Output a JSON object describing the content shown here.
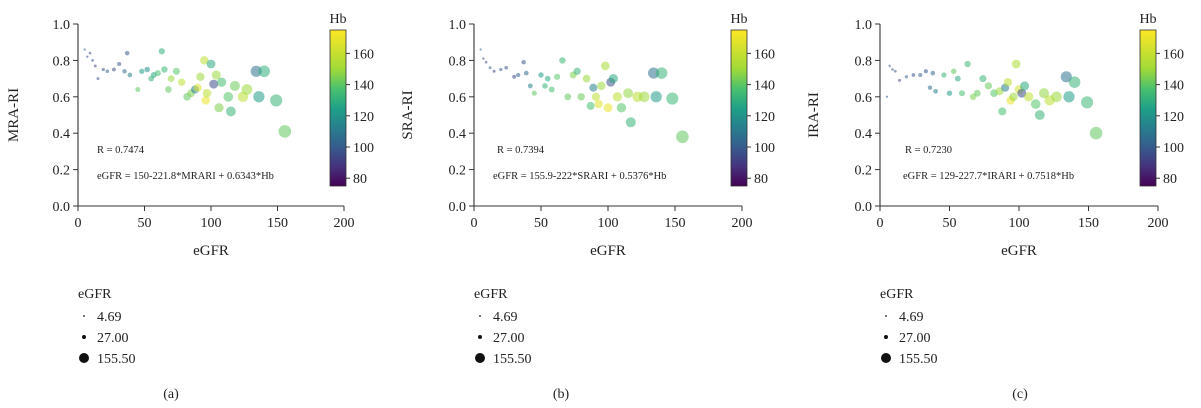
{
  "panels": [
    {
      "panel_label": "(a)",
      "r_text": "R = 0.7474",
      "equation": "eGFR = 150-221.8*MRARI + 0.6343*Hb"
    },
    {
      "panel_label": "(b)",
      "r_text": "R = 0.7394",
      "equation": "eGFR = 155.9-222*SRARI + 0.5376*Hb"
    },
    {
      "panel_label": "(c)",
      "r_text": "R = 0.7230",
      "equation": "eGFR = 129-227.7*IRARI + 0.7518*Hb"
    }
  ],
  "colorbar": {
    "title": "Hb",
    "min": 75,
    "max": 175,
    "ticks": [
      "80",
      "100",
      "120",
      "140",
      "160"
    ]
  },
  "size_legend": {
    "title": "eGFR",
    "items": [
      "4.69",
      "27.00",
      "155.50"
    ]
  },
  "chart_data": [
    {
      "type": "scatter",
      "title": "",
      "xlabel": "eGFR",
      "ylabel": "MRA-RI",
      "xlim": [
        0,
        200
      ],
      "ylim": [
        0,
        1.0
      ],
      "x_ticks": [
        "0",
        "50",
        "100",
        "150",
        "200"
      ],
      "y_ticks": [
        "0.0",
        "0.2",
        "0.4",
        "0.6",
        "0.8",
        "1.0"
      ],
      "size_by": "eGFR",
      "color_by": "Hb",
      "points": [
        {
          "x": 5,
          "y": 0.86,
          "hb": 105
        },
        {
          "x": 7,
          "y": 0.82,
          "hb": 100
        },
        {
          "x": 9,
          "y": 0.84,
          "hb": 98
        },
        {
          "x": 11,
          "y": 0.8,
          "hb": 102
        },
        {
          "x": 13,
          "y": 0.77,
          "hb": 96
        },
        {
          "x": 15,
          "y": 0.7,
          "hb": 104
        },
        {
          "x": 19,
          "y": 0.75,
          "hb": 100
        },
        {
          "x": 22,
          "y": 0.74,
          "hb": 106
        },
        {
          "x": 27,
          "y": 0.75,
          "hb": 98
        },
        {
          "x": 31,
          "y": 0.78,
          "hb": 102
        },
        {
          "x": 35,
          "y": 0.74,
          "hb": 108
        },
        {
          "x": 37,
          "y": 0.84,
          "hb": 104
        },
        {
          "x": 39,
          "y": 0.72,
          "hb": 118
        },
        {
          "x": 45,
          "y": 0.64,
          "hb": 150
        },
        {
          "x": 48,
          "y": 0.74,
          "hb": 130
        },
        {
          "x": 52,
          "y": 0.75,
          "hb": 125
        },
        {
          "x": 55,
          "y": 0.7,
          "hb": 140
        },
        {
          "x": 57,
          "y": 0.72,
          "hb": 135
        },
        {
          "x": 60,
          "y": 0.73,
          "hb": 145
        },
        {
          "x": 63,
          "y": 0.85,
          "hb": 138
        },
        {
          "x": 65,
          "y": 0.75,
          "hb": 142
        },
        {
          "x": 68,
          "y": 0.64,
          "hb": 150
        },
        {
          "x": 70,
          "y": 0.7,
          "hb": 160
        },
        {
          "x": 74,
          "y": 0.74,
          "hb": 148
        },
        {
          "x": 78,
          "y": 0.68,
          "hb": 165
        },
        {
          "x": 82,
          "y": 0.6,
          "hb": 150
        },
        {
          "x": 85,
          "y": 0.62,
          "hb": 155
        },
        {
          "x": 88,
          "y": 0.64,
          "hb": 118
        },
        {
          "x": 90,
          "y": 0.65,
          "hb": 170
        },
        {
          "x": 92,
          "y": 0.71,
          "hb": 160
        },
        {
          "x": 95,
          "y": 0.8,
          "hb": 165
        },
        {
          "x": 96,
          "y": 0.58,
          "hb": 172
        },
        {
          "x": 97,
          "y": 0.62,
          "hb": 165
        },
        {
          "x": 100,
          "y": 0.78,
          "hb": 135
        },
        {
          "x": 102,
          "y": 0.67,
          "hb": 98
        },
        {
          "x": 104,
          "y": 0.72,
          "hb": 160
        },
        {
          "x": 106,
          "y": 0.54,
          "hb": 155
        },
        {
          "x": 108,
          "y": 0.68,
          "hb": 145
        },
        {
          "x": 113,
          "y": 0.6,
          "hb": 148
        },
        {
          "x": 115,
          "y": 0.52,
          "hb": 140
        },
        {
          "x": 118,
          "y": 0.66,
          "hb": 152
        },
        {
          "x": 124,
          "y": 0.6,
          "hb": 165
        },
        {
          "x": 127,
          "y": 0.64,
          "hb": 160
        },
        {
          "x": 134,
          "y": 0.74,
          "hb": 112
        },
        {
          "x": 136,
          "y": 0.6,
          "hb": 130
        },
        {
          "x": 140,
          "y": 0.74,
          "hb": 138
        },
        {
          "x": 149,
          "y": 0.58,
          "hb": 140
        },
        {
          "x": 155.5,
          "y": 0.41,
          "hb": 150
        }
      ]
    },
    {
      "type": "scatter",
      "title": "",
      "xlabel": "eGFR",
      "ylabel": "SRA-RI",
      "xlim": [
        0,
        200
      ],
      "ylim": [
        0,
        1.0
      ],
      "x_ticks": [
        "0",
        "50",
        "100",
        "150",
        "200"
      ],
      "y_ticks": [
        "0.0",
        "0.2",
        "0.4",
        "0.6",
        "0.8",
        "1.0"
      ],
      "size_by": "eGFR",
      "color_by": "Hb",
      "points": [
        {
          "x": 5,
          "y": 0.86,
          "hb": 105
        },
        {
          "x": 7,
          "y": 0.81,
          "hb": 100
        },
        {
          "x": 9,
          "y": 0.79,
          "hb": 98
        },
        {
          "x": 12,
          "y": 0.76,
          "hb": 102
        },
        {
          "x": 15,
          "y": 0.74,
          "hb": 96
        },
        {
          "x": 20,
          "y": 0.75,
          "hb": 104
        },
        {
          "x": 24,
          "y": 0.76,
          "hb": 100
        },
        {
          "x": 30,
          "y": 0.71,
          "hb": 98
        },
        {
          "x": 33,
          "y": 0.72,
          "hb": 106
        },
        {
          "x": 37,
          "y": 0.79,
          "hb": 102
        },
        {
          "x": 39,
          "y": 0.73,
          "hb": 110
        },
        {
          "x": 42,
          "y": 0.66,
          "hb": 118
        },
        {
          "x": 45,
          "y": 0.62,
          "hb": 150
        },
        {
          "x": 50,
          "y": 0.72,
          "hb": 130
        },
        {
          "x": 53,
          "y": 0.66,
          "hb": 140
        },
        {
          "x": 55,
          "y": 0.7,
          "hb": 135
        },
        {
          "x": 58,
          "y": 0.64,
          "hb": 145
        },
        {
          "x": 62,
          "y": 0.71,
          "hb": 148
        },
        {
          "x": 66,
          "y": 0.8,
          "hb": 142
        },
        {
          "x": 70,
          "y": 0.6,
          "hb": 150
        },
        {
          "x": 74,
          "y": 0.72,
          "hb": 155
        },
        {
          "x": 77,
          "y": 0.74,
          "hb": 140
        },
        {
          "x": 80,
          "y": 0.6,
          "hb": 152
        },
        {
          "x": 84,
          "y": 0.7,
          "hb": 160
        },
        {
          "x": 87,
          "y": 0.55,
          "hb": 145
        },
        {
          "x": 89,
          "y": 0.65,
          "hb": 118
        },
        {
          "x": 91,
          "y": 0.6,
          "hb": 165
        },
        {
          "x": 93,
          "y": 0.56,
          "hb": 170
        },
        {
          "x": 95,
          "y": 0.66,
          "hb": 160
        },
        {
          "x": 98,
          "y": 0.77,
          "hb": 162
        },
        {
          "x": 100,
          "y": 0.54,
          "hb": 172
        },
        {
          "x": 102,
          "y": 0.68,
          "hb": 100
        },
        {
          "x": 104,
          "y": 0.7,
          "hb": 135
        },
        {
          "x": 107,
          "y": 0.6,
          "hb": 165
        },
        {
          "x": 110,
          "y": 0.54,
          "hb": 148
        },
        {
          "x": 115,
          "y": 0.62,
          "hb": 158
        },
        {
          "x": 117,
          "y": 0.46,
          "hb": 140
        },
        {
          "x": 122,
          "y": 0.6,
          "hb": 165
        },
        {
          "x": 127,
          "y": 0.6,
          "hb": 160
        },
        {
          "x": 134,
          "y": 0.73,
          "hb": 112
        },
        {
          "x": 136,
          "y": 0.6,
          "hb": 130
        },
        {
          "x": 140,
          "y": 0.73,
          "hb": 140
        },
        {
          "x": 148,
          "y": 0.59,
          "hb": 142
        },
        {
          "x": 155.5,
          "y": 0.38,
          "hb": 150
        }
      ]
    },
    {
      "type": "scatter",
      "title": "",
      "xlabel": "eGFR",
      "ylabel": "IRA-RI",
      "xlim": [
        0,
        200
      ],
      "ylim": [
        0,
        1.0
      ],
      "x_ticks": [
        "0",
        "50",
        "100",
        "150",
        "200"
      ],
      "y_ticks": [
        "0.0",
        "0.2",
        "0.4",
        "0.6",
        "0.8",
        "1.0"
      ],
      "size_by": "eGFR",
      "color_by": "Hb",
      "points": [
        {
          "x": 5,
          "y": 0.6,
          "hb": 105
        },
        {
          "x": 7,
          "y": 0.77,
          "hb": 100
        },
        {
          "x": 9,
          "y": 0.75,
          "hb": 98
        },
        {
          "x": 11,
          "y": 0.74,
          "hb": 102
        },
        {
          "x": 14,
          "y": 0.69,
          "hb": 96
        },
        {
          "x": 19,
          "y": 0.71,
          "hb": 104
        },
        {
          "x": 24,
          "y": 0.72,
          "hb": 100
        },
        {
          "x": 29,
          "y": 0.72,
          "hb": 106
        },
        {
          "x": 33,
          "y": 0.74,
          "hb": 102
        },
        {
          "x": 36,
          "y": 0.65,
          "hb": 110
        },
        {
          "x": 38,
          "y": 0.73,
          "hb": 108
        },
        {
          "x": 40,
          "y": 0.63,
          "hb": 118
        },
        {
          "x": 46,
          "y": 0.72,
          "hb": 140
        },
        {
          "x": 50,
          "y": 0.62,
          "hb": 130
        },
        {
          "x": 53,
          "y": 0.74,
          "hb": 150
        },
        {
          "x": 56,
          "y": 0.7,
          "hb": 135
        },
        {
          "x": 59,
          "y": 0.62,
          "hb": 145
        },
        {
          "x": 63,
          "y": 0.78,
          "hb": 142
        },
        {
          "x": 67,
          "y": 0.6,
          "hb": 155
        },
        {
          "x": 70,
          "y": 0.62,
          "hb": 150
        },
        {
          "x": 74,
          "y": 0.7,
          "hb": 140
        },
        {
          "x": 78,
          "y": 0.66,
          "hb": 152
        },
        {
          "x": 82,
          "y": 0.62,
          "hb": 148
        },
        {
          "x": 86,
          "y": 0.63,
          "hb": 160
        },
        {
          "x": 88,
          "y": 0.52,
          "hb": 145
        },
        {
          "x": 90,
          "y": 0.65,
          "hb": 118
        },
        {
          "x": 92,
          "y": 0.68,
          "hb": 165
        },
        {
          "x": 94,
          "y": 0.58,
          "hb": 172
        },
        {
          "x": 96,
          "y": 0.6,
          "hb": 160
        },
        {
          "x": 98,
          "y": 0.78,
          "hb": 162
        },
        {
          "x": 100,
          "y": 0.64,
          "hb": 168
        },
        {
          "x": 102,
          "y": 0.62,
          "hb": 98
        },
        {
          "x": 104,
          "y": 0.66,
          "hb": 135
        },
        {
          "x": 107,
          "y": 0.6,
          "hb": 165
        },
        {
          "x": 112,
          "y": 0.56,
          "hb": 148
        },
        {
          "x": 115,
          "y": 0.5,
          "hb": 140
        },
        {
          "x": 118,
          "y": 0.62,
          "hb": 158
        },
        {
          "x": 122,
          "y": 0.58,
          "hb": 165
        },
        {
          "x": 127,
          "y": 0.6,
          "hb": 160
        },
        {
          "x": 134,
          "y": 0.71,
          "hb": 112
        },
        {
          "x": 136,
          "y": 0.6,
          "hb": 130
        },
        {
          "x": 140,
          "y": 0.68,
          "hb": 140
        },
        {
          "x": 149,
          "y": 0.57,
          "hb": 142
        },
        {
          "x": 155.5,
          "y": 0.4,
          "hb": 150
        }
      ]
    }
  ]
}
